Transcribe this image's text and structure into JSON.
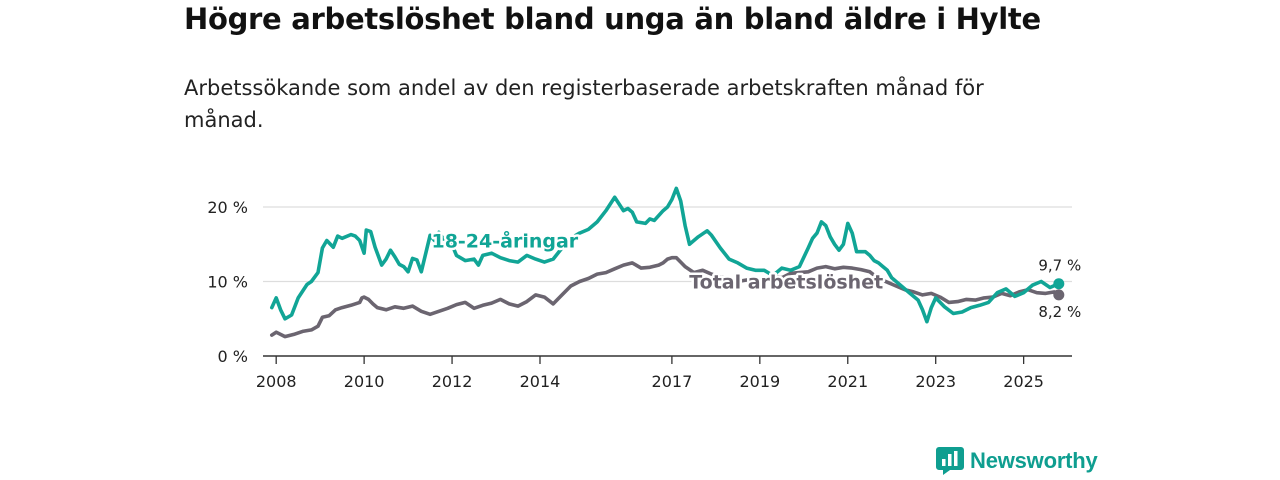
{
  "title": "Högre arbetslöshet bland unga än bland äldre i Hylte",
  "subtitle": "Arbetssökande som andel av den registerbaserade arbetskraften månad för månad.",
  "brand": {
    "name": "Newsworthy",
    "icon": "newsworthy-logo-icon",
    "color": "#0f9e90"
  },
  "chart_data": {
    "type": "line",
    "title": "Högre arbetslöshet bland unga än bland äldre i Hylte",
    "subtitle": "Arbetssökande som andel av den registerbaserade arbetskraften månad för månad.",
    "xlabel": "",
    "ylabel": "",
    "xlim": [
      2007.7,
      2026.1
    ],
    "ylim": [
      0,
      20
    ],
    "grid": true,
    "y_ticks": [
      0,
      10,
      20
    ],
    "y_tick_labels": [
      "0 %",
      "10 %",
      "20 %"
    ],
    "x_ticks": [
      2008,
      2010,
      2012,
      2014,
      2017,
      2019,
      2021,
      2023,
      2025
    ],
    "x_tick_labels": [
      "2008",
      "2010",
      "2012",
      "2014",
      "2017",
      "2019",
      "2021",
      "2023",
      "2025"
    ],
    "series": [
      {
        "name": "Total arbetslöshet",
        "color": "#6b6570",
        "end_label": "8,2 %",
        "x": [
          2007.9,
          2008.0,
          2008.2,
          2008.4,
          2008.6,
          2008.8,
          2008.95,
          2009.05,
          2009.2,
          2009.35,
          2009.5,
          2009.7,
          2009.9,
          2009.95,
          2010.0,
          2010.1,
          2010.2,
          2010.3,
          2010.5,
          2010.7,
          2010.9,
          2011.1,
          2011.3,
          2011.5,
          2011.7,
          2011.9,
          2012.1,
          2012.3,
          2012.5,
          2012.7,
          2012.9,
          2013.1,
          2013.3,
          2013.5,
          2013.7,
          2013.9,
          2014.1,
          2014.3,
          2014.5,
          2014.7,
          2014.9,
          2015.1,
          2015.3,
          2015.5,
          2015.7,
          2015.9,
          2016.1,
          2016.3,
          2016.5,
          2016.7,
          2016.8,
          2016.9,
          2017.0,
          2017.1,
          2017.2,
          2017.3,
          2017.5,
          2017.7,
          2017.9,
          2018.1,
          2018.3,
          2018.5,
          2018.7,
          2018.9,
          2019.1,
          2019.3,
          2019.5,
          2019.7,
          2019.9,
          2020.1,
          2020.3,
          2020.5,
          2020.7,
          2020.9,
          2021.1,
          2021.3,
          2021.5,
          2021.7,
          2021.9,
          2022.1,
          2022.3,
          2022.5,
          2022.7,
          2022.9,
          2023.1,
          2023.3,
          2023.5,
          2023.7,
          2023.9,
          2024.1,
          2024.3,
          2024.5,
          2024.7,
          2024.9,
          2025.1,
          2025.3,
          2025.5,
          2025.7,
          2025.8
        ],
        "y": [
          2.8,
          3.2,
          2.6,
          2.9,
          3.3,
          3.5,
          4.0,
          5.2,
          5.4,
          6.2,
          6.5,
          6.8,
          7.2,
          7.8,
          7.9,
          7.6,
          7.0,
          6.5,
          6.2,
          6.6,
          6.4,
          6.7,
          6.0,
          5.6,
          6.0,
          6.4,
          6.9,
          7.2,
          6.4,
          6.8,
          7.1,
          7.6,
          7.0,
          6.7,
          7.3,
          8.2,
          7.9,
          7.0,
          8.2,
          9.4,
          10.0,
          10.4,
          11.0,
          11.2,
          11.7,
          12.2,
          12.5,
          11.8,
          11.9,
          12.2,
          12.5,
          13.0,
          13.2,
          13.2,
          12.6,
          12.0,
          11.2,
          11.5,
          11.0,
          10.6,
          10.4,
          10.0,
          10.2,
          10.4,
          10.2,
          10.8,
          10.5,
          11.1,
          11.2,
          11.3,
          11.8,
          12.0,
          11.7,
          11.9,
          11.8,
          11.6,
          11.3,
          10.4,
          9.9,
          9.4,
          8.9,
          8.6,
          8.2,
          8.4,
          7.9,
          7.2,
          7.3,
          7.6,
          7.5,
          7.8,
          7.9,
          8.4,
          8.1,
          8.6,
          8.9,
          8.5,
          8.4,
          8.6,
          8.2
        ]
      },
      {
        "name": "18-24-åringar",
        "color": "#11a596",
        "end_label": "9,7 %",
        "x": [
          2007.9,
          2008.0,
          2008.1,
          2008.2,
          2008.35,
          2008.5,
          2008.7,
          2008.8,
          2008.95,
          2009.05,
          2009.15,
          2009.3,
          2009.4,
          2009.5,
          2009.7,
          2009.8,
          2009.9,
          2010.0,
          2010.05,
          2010.15,
          2010.25,
          2010.4,
          2010.5,
          2010.6,
          2010.7,
          2010.8,
          2010.9,
          2011.0,
          2011.1,
          2011.2,
          2011.3,
          2011.5,
          2011.6,
          2011.7,
          2011.8,
          2011.9,
          2012.1,
          2012.3,
          2012.5,
          2012.6,
          2012.7,
          2012.9,
          2013.1,
          2013.3,
          2013.5,
          2013.7,
          2013.9,
          2014.1,
          2014.3,
          2014.5,
          2014.7,
          2014.9,
          2015.1,
          2015.3,
          2015.5,
          2015.7,
          2015.8,
          2015.9,
          2016.0,
          2016.1,
          2016.2,
          2016.4,
          2016.5,
          2016.6,
          2016.8,
          2016.9,
          2017.0,
          2017.1,
          2017.2,
          2017.3,
          2017.4,
          2017.6,
          2017.8,
          2017.9,
          2018.1,
          2018.3,
          2018.5,
          2018.7,
          2018.9,
          2019.1,
          2019.3,
          2019.5,
          2019.7,
          2019.9,
          2020.1,
          2020.2,
          2020.3,
          2020.4,
          2020.5,
          2020.6,
          2020.7,
          2020.8,
          2020.9,
          2021.0,
          2021.1,
          2021.2,
          2021.4,
          2021.5,
          2021.6,
          2021.7,
          2021.8,
          2021.9,
          2022.0,
          2022.2,
          2022.4,
          2022.6,
          2022.7,
          2022.8,
          2022.9,
          2023.0,
          2023.2,
          2023.4,
          2023.6,
          2023.8,
          2024.0,
          2024.2,
          2024.4,
          2024.6,
          2024.8,
          2025.0,
          2025.2,
          2025.4,
          2025.6,
          2025.8
        ],
        "y": [
          6.5,
          7.8,
          6.2,
          5.0,
          5.5,
          7.8,
          9.6,
          10.0,
          11.2,
          14.5,
          15.5,
          14.6,
          16.1,
          15.8,
          16.3,
          16.1,
          15.5,
          13.8,
          16.9,
          16.7,
          14.6,
          12.2,
          13.0,
          14.2,
          13.3,
          12.3,
          12.0,
          11.3,
          13.1,
          12.9,
          11.3,
          16.2,
          15.5,
          16.6,
          15.7,
          16.3,
          13.5,
          12.8,
          13.0,
          12.2,
          13.5,
          13.8,
          13.2,
          12.8,
          12.6,
          13.5,
          13.0,
          12.6,
          13.0,
          14.5,
          15.8,
          16.5,
          17.0,
          18.0,
          19.5,
          21.3,
          20.4,
          19.5,
          19.8,
          19.3,
          18.0,
          17.8,
          18.4,
          18.2,
          19.5,
          20.0,
          21.0,
          22.5,
          20.8,
          17.5,
          15.0,
          16.0,
          16.8,
          16.2,
          14.5,
          13.0,
          12.5,
          11.8,
          11.5,
          11.5,
          10.8,
          11.8,
          11.5,
          12.0,
          14.5,
          15.8,
          16.5,
          18.0,
          17.5,
          16.0,
          15.0,
          14.2,
          15.0,
          17.8,
          16.5,
          14.0,
          14.0,
          13.5,
          12.8,
          12.5,
          12.0,
          11.5,
          10.5,
          9.5,
          8.5,
          7.5,
          6.2,
          4.6,
          6.5,
          7.8,
          6.6,
          5.7,
          5.9,
          6.5,
          6.8,
          7.2,
          8.5,
          9.0,
          8.0,
          8.5,
          9.5,
          10.0,
          9.2,
          9.7
        ]
      }
    ],
    "annotations": [
      {
        "text": "18-24-åringar",
        "series": "18-24-åringar",
        "at_x": 2013.2,
        "at_y": 15.5
      },
      {
        "text": "Total arbetslöshet",
        "series": "Total arbetslöshet",
        "at_x": 2019.6,
        "at_y": 10.0
      }
    ]
  }
}
